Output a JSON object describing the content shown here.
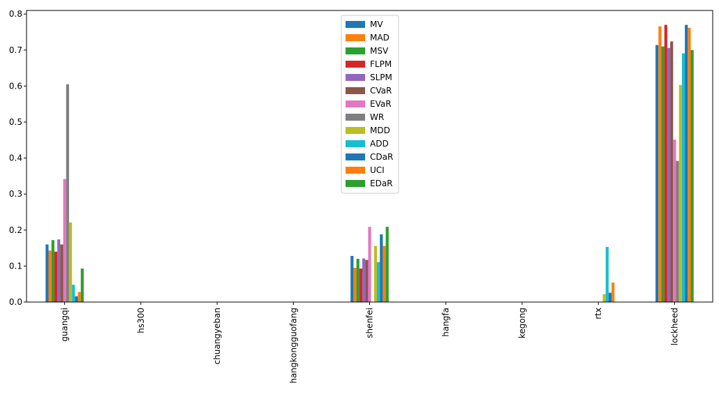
{
  "chart_data": {
    "type": "bar",
    "categories": [
      "guangqi",
      "hs300",
      "chuangyeban",
      "hangkongguofang",
      "shenfei",
      "hangfa",
      "kegong",
      "rtx",
      "lockheed"
    ],
    "ylim": [
      0,
      0.81
    ],
    "yticks": [
      "0.0",
      "0.1",
      "0.2",
      "0.3",
      "0.4",
      "0.5",
      "0.6",
      "0.7",
      "0.8"
    ],
    "grid": false,
    "legend": "top-center",
    "series": [
      {
        "name": "MV",
        "color": "#1f77b4",
        "values": [
          0.16,
          0,
          0,
          0,
          0.128,
          0,
          0,
          0,
          0.714
        ]
      },
      {
        "name": "MAD",
        "color": "#ff7f0e",
        "values": [
          0.143,
          0,
          0,
          0,
          0.095,
          0,
          0,
          0,
          0.766
        ]
      },
      {
        "name": "MSV",
        "color": "#2ca02c",
        "values": [
          0.172,
          0,
          0,
          0,
          0.12,
          0,
          0,
          0,
          0.71
        ]
      },
      {
        "name": "FLPM",
        "color": "#d62728",
        "values": [
          0.14,
          0,
          0,
          0,
          0.093,
          0,
          0,
          0,
          0.77
        ]
      },
      {
        "name": "SLPM",
        "color": "#9467bd",
        "values": [
          0.174,
          0,
          0,
          0,
          0.121,
          0,
          0,
          0,
          0.706
        ]
      },
      {
        "name": "CVaR",
        "color": "#8c564b",
        "values": [
          0.16,
          0,
          0,
          0,
          0.117,
          0,
          0,
          0,
          0.724
        ]
      },
      {
        "name": "EVaR",
        "color": "#e377c2",
        "values": [
          0.342,
          0,
          0,
          0,
          0.209,
          0,
          0,
          0,
          0.451
        ]
      },
      {
        "name": "WR",
        "color": "#7f7f7f",
        "values": [
          0.605,
          0,
          0,
          0,
          0.0,
          0,
          0,
          0,
          0.392
        ]
      },
      {
        "name": "MDD",
        "color": "#bcbd22",
        "values": [
          0.221,
          0,
          0,
          0,
          0.156,
          0,
          0,
          0.022,
          0.603
        ]
      },
      {
        "name": "ADD",
        "color": "#17becf",
        "values": [
          0.048,
          0,
          0,
          0,
          0.111,
          0,
          0,
          0.153,
          0.691
        ]
      },
      {
        "name": "CDaR",
        "color": "#1f77b4",
        "values": [
          0.016,
          0,
          0,
          0,
          0.188,
          0,
          0,
          0.026,
          0.77
        ]
      },
      {
        "name": "UCI",
        "color": "#ff7f0e",
        "values": [
          0.028,
          0,
          0,
          0,
          0.156,
          0,
          0,
          0.054,
          0.762
        ]
      },
      {
        "name": "EDaR",
        "color": "#2ca02c",
        "values": [
          0.093,
          0,
          0,
          0,
          0.209,
          0,
          0,
          0,
          0.7
        ]
      }
    ]
  }
}
